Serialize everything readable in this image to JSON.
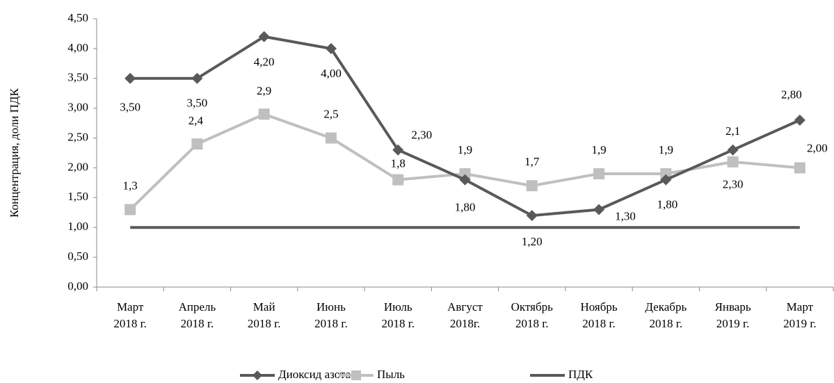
{
  "chart_data": {
    "type": "line",
    "y_label": "Концентрация, доли ПДК",
    "categories": [
      [
        "Март",
        "2018 г."
      ],
      [
        "Апрель",
        "2018 г."
      ],
      [
        "Май",
        "2018 г."
      ],
      [
        "Июнь",
        "2018 г."
      ],
      [
        "Июль",
        "2018 г."
      ],
      [
        "Август",
        "2018г."
      ],
      [
        "Октябрь",
        "2018 г."
      ],
      [
        "Ноябрь",
        "2018 г."
      ],
      [
        "Декабрь",
        "2018 г."
      ],
      [
        "Январь",
        "2019 г."
      ],
      [
        "Март",
        "2019 г."
      ]
    ],
    "series": [
      {
        "name": "Диоксид азота",
        "color": "#595959",
        "marker": "diamond",
        "values": [
          3.5,
          3.5,
          4.2,
          4.0,
          2.3,
          1.8,
          1.2,
          1.3,
          1.8,
          2.3,
          2.8
        ],
        "value_labels": [
          "3,50",
          "3,50",
          "4,20",
          "4,00",
          "2,30",
          "1,80",
          "1,20",
          "1,30",
          "1,80",
          "2,30",
          "2,80"
        ]
      },
      {
        "name": "Пыль",
        "color": "#bfbfbf",
        "marker": "square",
        "values": [
          1.3,
          2.4,
          2.9,
          2.5,
          1.8,
          1.9,
          1.7,
          1.9,
          1.9,
          2.1,
          2.0
        ],
        "value_labels": [
          "1,3",
          "2,4",
          "2,9",
          "2,5",
          "1,8",
          "1,9",
          "1,7",
          "1,9",
          "1,9",
          "2,1",
          "2,00"
        ]
      },
      {
        "name": "ПДК",
        "color": "#595959",
        "marker": "none",
        "values": [
          1.0,
          1.0,
          1.0,
          1.0,
          1.0,
          1.0,
          1.0,
          1.0,
          1.0,
          1.0,
          1.0
        ]
      }
    ],
    "ylim": [
      0,
      4.5
    ],
    "yticks": [
      {
        "value": 0,
        "label": "0,00"
      },
      {
        "value": 0.5,
        "label": "0,50"
      },
      {
        "value": 1,
        "label": "1,00"
      },
      {
        "value": 1.5,
        "label": "1,50"
      },
      {
        "value": 2,
        "label": "2,00"
      },
      {
        "value": 2.5,
        "label": "2,50"
      },
      {
        "value": 3,
        "label": "3,00"
      },
      {
        "value": 3.5,
        "label": "3,50"
      },
      {
        "value": 4,
        "label": "4,00"
      },
      {
        "value": 4.5,
        "label": "4,50"
      }
    ],
    "legend": "bottom"
  }
}
